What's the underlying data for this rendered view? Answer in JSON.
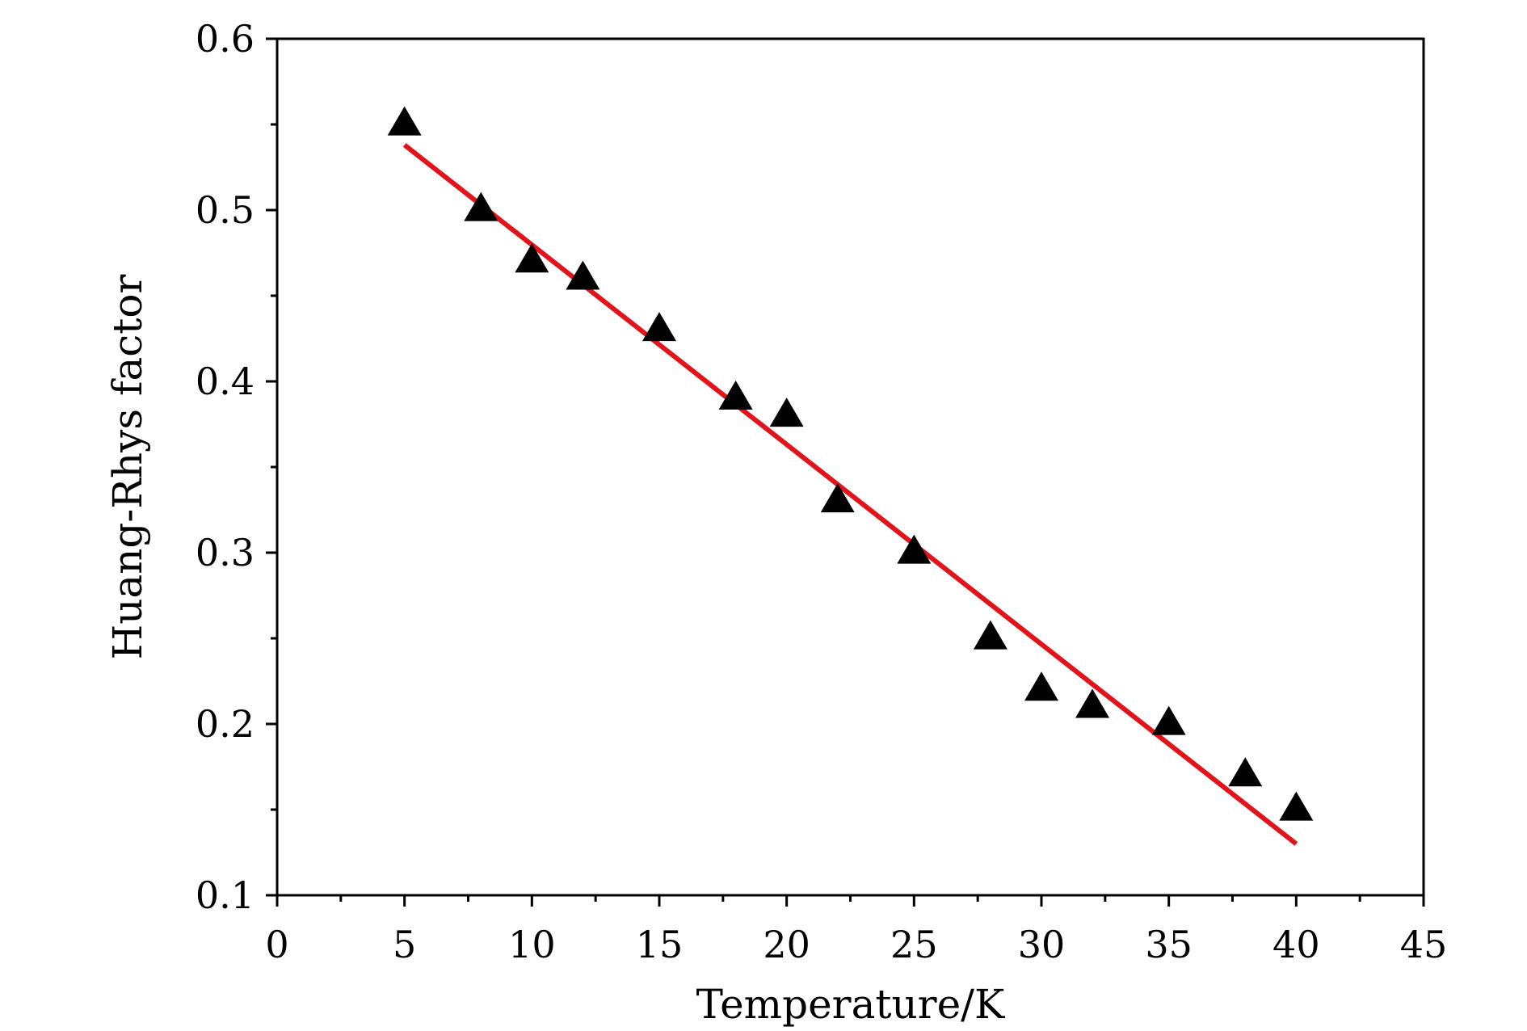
{
  "chart_data": {
    "type": "scatter",
    "title": "",
    "xlabel": "Temperature/K",
    "ylabel": "Huang-Rhys factor",
    "xlim": [
      0,
      45
    ],
    "ylim": [
      0.1,
      0.6
    ],
    "x_ticks": [
      0,
      5,
      10,
      15,
      20,
      25,
      30,
      35,
      40,
      45
    ],
    "y_ticks": [
      0.1,
      0.2,
      0.3,
      0.4,
      0.5,
      0.6
    ],
    "x_tick_labels": [
      "0",
      "5",
      "10",
      "15",
      "20",
      "25",
      "30",
      "35",
      "40",
      "45"
    ],
    "y_tick_labels": [
      "0.1",
      "0.2",
      "0.3",
      "0.4",
      "0.5",
      "0.6"
    ],
    "grid": false,
    "legend": "none",
    "series": [
      {
        "marker": "triangle",
        "color": "#000000",
        "x": [
          5,
          8,
          10,
          12,
          15,
          18,
          20,
          22,
          25,
          28,
          30,
          32,
          35,
          38,
          40
        ],
        "y": [
          0.55,
          0.5,
          0.47,
          0.46,
          0.43,
          0.39,
          0.38,
          0.33,
          0.3,
          0.25,
          0.22,
          0.21,
          0.2,
          0.17,
          0.15
        ]
      }
    ],
    "fit_line": {
      "type": "linear",
      "color": "#e3131b",
      "x": [
        5,
        40
      ],
      "y": [
        0.538,
        0.13
      ]
    }
  }
}
